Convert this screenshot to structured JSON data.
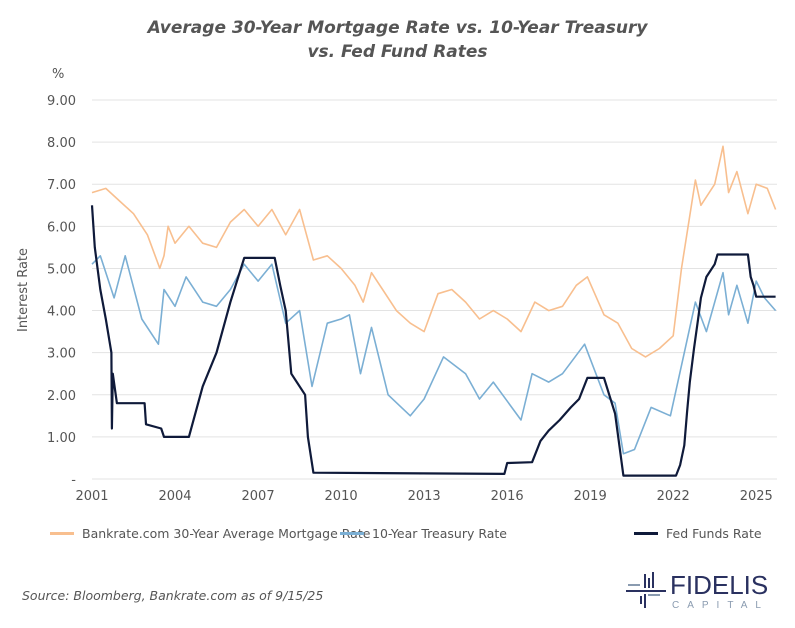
{
  "chart_data": {
    "type": "line",
    "title": "Average 30-Year Mortgage Rate vs. 10-Year Treasury",
    "title_line2": "vs. Fed Fund Rates",
    "unit_label": "%",
    "ylabel": "Interest Rate",
    "xlabel": "",
    "xlim": [
      2001.0,
      2025.75
    ],
    "ylim": [
      0,
      9
    ],
    "x_ticks": [
      "2001",
      "2004",
      "2007",
      "2010",
      "2013",
      "2016",
      "2019",
      "2022",
      "2025"
    ],
    "y_ticks": [
      "-",
      "1.00",
      "2.00",
      "3.00",
      "4.00",
      "5.00",
      "6.00",
      "7.00",
      "8.00",
      "9.00"
    ],
    "grid": "horizontal",
    "legend_placement": "bottom",
    "series": [
      {
        "name": "Bankrate.com 30-Year Average Mortgage Rate",
        "color": "#f8bf8f",
        "x": [
          2001.0,
          2001.5,
          2002.0,
          2002.5,
          2003.0,
          2003.45,
          2003.6,
          2003.75,
          2004.0,
          2004.5,
          2005.0,
          2005.5,
          2006.0,
          2006.5,
          2007.0,
          2007.5,
          2008.0,
          2008.5,
          2009.0,
          2009.5,
          2010.0,
          2010.5,
          2010.8,
          2011.1,
          2011.5,
          2012.0,
          2012.5,
          2013.0,
          2013.5,
          2014.0,
          2014.5,
          2015.0,
          2015.5,
          2016.0,
          2016.5,
          2017.0,
          2017.5,
          2018.0,
          2018.5,
          2018.9,
          2019.5,
          2020.0,
          2020.5,
          2021.0,
          2021.5,
          2022.0,
          2022.3,
          2022.8,
          2023.0,
          2023.5,
          2023.8,
          2024.0,
          2024.3,
          2024.7,
          2025.0,
          2025.4,
          2025.7
        ],
        "y": [
          6.8,
          6.9,
          6.6,
          6.3,
          5.8,
          5.0,
          5.3,
          6.0,
          5.6,
          6.0,
          5.6,
          5.5,
          6.1,
          6.4,
          6.0,
          6.4,
          5.8,
          6.4,
          5.2,
          5.3,
          5.0,
          4.6,
          4.2,
          4.9,
          4.5,
          4.0,
          3.7,
          3.5,
          4.4,
          4.5,
          4.2,
          3.8,
          4.0,
          3.8,
          3.5,
          4.2,
          4.0,
          4.1,
          4.6,
          4.8,
          3.9,
          3.7,
          3.1,
          2.9,
          3.1,
          3.4,
          5.0,
          7.1,
          6.5,
          7.0,
          7.9,
          6.8,
          7.3,
          6.3,
          7.0,
          6.9,
          6.4
        ]
      },
      {
        "name": "10-Year Treasury Rate",
        "color": "#7bafd4",
        "x": [
          2001.0,
          2001.3,
          2001.8,
          2002.2,
          2002.8,
          2003.4,
          2003.6,
          2004.0,
          2004.4,
          2005.0,
          2005.5,
          2006.0,
          2006.5,
          2007.0,
          2007.5,
          2008.0,
          2008.5,
          2008.95,
          2009.5,
          2010.0,
          2010.3,
          2010.7,
          2011.1,
          2011.7,
          2012.5,
          2013.0,
          2013.7,
          2014.5,
          2015.0,
          2015.5,
          2016.5,
          2016.9,
          2017.5,
          2018.0,
          2018.8,
          2019.5,
          2019.9,
          2020.2,
          2020.6,
          2021.2,
          2021.9,
          2022.4,
          2022.8,
          2023.2,
          2023.8,
          2024.0,
          2024.3,
          2024.7,
          2025.0,
          2025.3,
          2025.7
        ],
        "y": [
          5.1,
          5.3,
          4.3,
          5.3,
          3.8,
          3.2,
          4.5,
          4.1,
          4.8,
          4.2,
          4.1,
          4.5,
          5.1,
          4.7,
          5.1,
          3.7,
          4.0,
          2.2,
          3.7,
          3.8,
          3.9,
          2.5,
          3.6,
          2.0,
          1.5,
          1.9,
          2.9,
          2.5,
          1.9,
          2.3,
          1.4,
          2.5,
          2.3,
          2.5,
          3.2,
          2.0,
          1.8,
          0.6,
          0.7,
          1.7,
          1.5,
          3.0,
          4.2,
          3.5,
          4.9,
          3.9,
          4.6,
          3.7,
          4.7,
          4.3,
          4.0
        ]
      },
      {
        "name": "Fed Funds Rate",
        "color": "#0f1a3a",
        "x": [
          2001.0,
          2001.1,
          2001.3,
          2001.5,
          2001.7,
          2001.72,
          2001.75,
          2001.9,
          2002.9,
          2002.95,
          2003.5,
          2003.6,
          2004.5,
          2005.0,
          2005.5,
          2006.0,
          2006.5,
          2007.6,
          2007.8,
          2008.0,
          2008.2,
          2008.7,
          2008.8,
          2009.0,
          2015.9,
          2016.0,
          2016.9,
          2017.2,
          2017.5,
          2017.9,
          2018.3,
          2018.6,
          2018.9,
          2019.5,
          2019.9,
          2020.2,
          2022.1,
          2022.25,
          2022.4,
          2022.5,
          2022.6,
          2022.75,
          2022.9,
          2023.0,
          2023.2,
          2023.5,
          2023.6,
          2024.7,
          2024.8,
          2024.9,
          2025.0,
          2025.7
        ],
        "y": [
          6.5,
          5.5,
          4.5,
          3.8,
          3.0,
          1.2,
          2.5,
          1.8,
          1.8,
          1.3,
          1.2,
          1.0,
          1.0,
          2.2,
          3.0,
          4.2,
          5.25,
          5.25,
          4.6,
          4.0,
          2.5,
          2.0,
          1.0,
          0.15,
          0.12,
          0.38,
          0.4,
          0.9,
          1.15,
          1.4,
          1.7,
          1.9,
          2.4,
          2.4,
          1.55,
          0.08,
          0.08,
          0.33,
          0.8,
          1.6,
          2.3,
          3.1,
          3.8,
          4.3,
          4.8,
          5.1,
          5.33,
          5.33,
          4.8,
          4.6,
          4.33,
          4.33
        ]
      }
    ]
  },
  "footer": {
    "source": "Source: Bloomberg, Bankrate.com as of 9/15/25",
    "logo_text": "FIDELIS",
    "logo_sub": "CAPITAL"
  }
}
